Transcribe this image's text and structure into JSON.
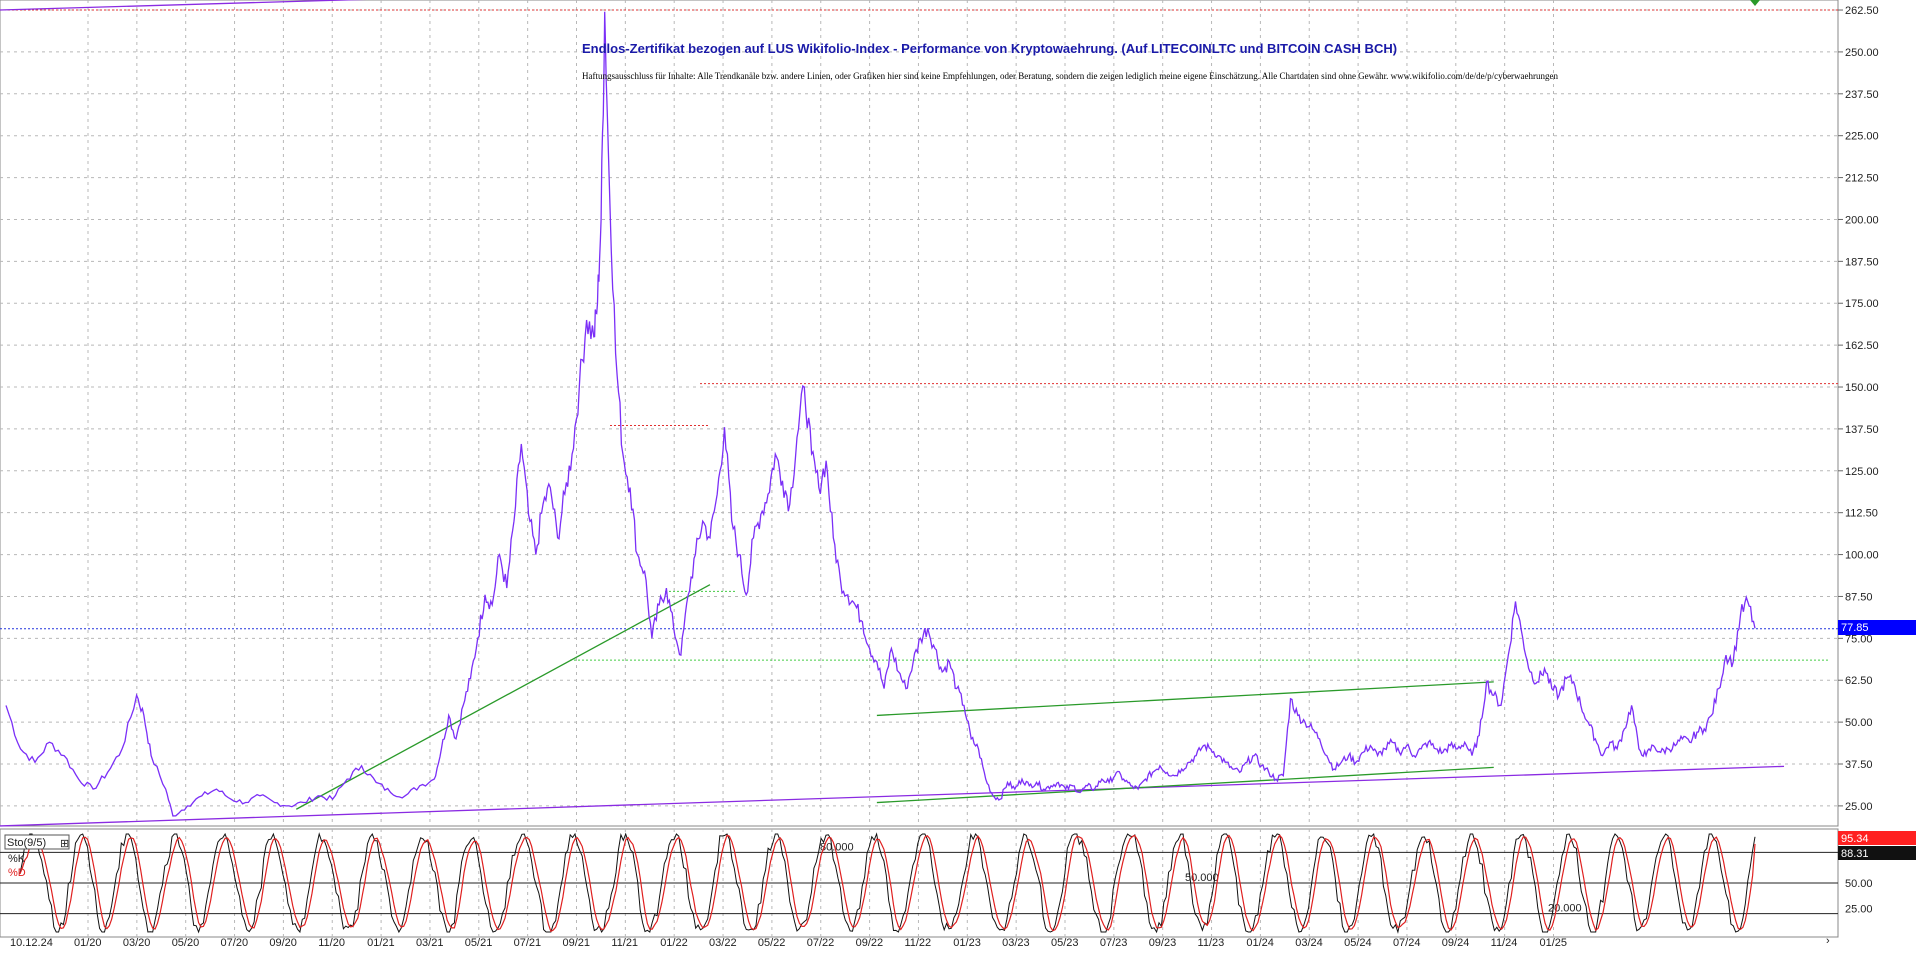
{
  "chart_data": [
    {
      "type": "line",
      "title": "Endlos-Zertifikat bezogen auf LUS Wikifolio-Index - Performance von Kryptowaehrung. (Auf LITECOINLTC und BITCOIN CASH BCH)",
      "subtitle": "Haftungsausschluss für Inhalte: Alle Trendkanäle bzw. andere Linien, oder Grafiken hier sind keine Empfehlungen, oder Beratung, sondern die zeigen lediglich meine eigene Einschätzung. Alle Chartdaten sind ohne Gewähr. www.wikifolio.com/de/de/p/cyberwaehrungen",
      "y_ticks": [
        "262.50",
        "250.00",
        "237.50",
        "225.00",
        "212.50",
        "200.00",
        "187.50",
        "175.00",
        "162.50",
        "150.00",
        "137.50",
        "125.00",
        "112.50",
        "100.00",
        "87.50",
        "75.00",
        "62.50",
        "50.00",
        "37.50",
        "25.00"
      ],
      "ylim": [
        19,
        264
      ],
      "x_ticks": [
        "10.12.24",
        "01/20",
        "03/20",
        "05/20",
        "07/20",
        "09/20",
        "11/20",
        "01/21",
        "03/21",
        "05/21",
        "07/21",
        "09/21",
        "11/21",
        "01/22",
        "03/22",
        "05/22",
        "07/22",
        "09/22",
        "11/22",
        "01/23",
        "03/23",
        "05/23",
        "07/23",
        "09/23",
        "11/23",
        "01/24",
        "03/24",
        "05/24",
        "07/24",
        "09/24",
        "11/24",
        "01/25"
      ],
      "last_value_label": "77.85",
      "grid": true,
      "series": [
        {
          "color": "#7b2ff7",
          "points": [
            [
              0,
              55
            ],
            [
              2,
              42
            ],
            [
              4,
              38
            ],
            [
              6,
              44
            ],
            [
              8,
              40
            ],
            [
              10,
              33
            ],
            [
              12,
              30
            ],
            [
              14,
              35
            ],
            [
              16,
              42
            ],
            [
              18,
              58
            ],
            [
              19,
              52
            ],
            [
              20,
              40
            ],
            [
              22,
              30
            ],
            [
              23,
              22
            ],
            [
              25,
              25
            ],
            [
              27,
              28
            ],
            [
              29,
              30
            ],
            [
              31,
              27
            ],
            [
              33,
              26
            ],
            [
              35,
              28
            ],
            [
              37,
              26
            ],
            [
              39,
              25
            ],
            [
              41,
              26
            ],
            [
              43,
              28
            ],
            [
              45,
              27
            ],
            [
              47,
              33
            ],
            [
              49,
              37
            ],
            [
              51,
              32
            ],
            [
              53,
              29
            ],
            [
              55,
              28
            ],
            [
              57,
              31
            ],
            [
              59,
              33
            ],
            [
              60,
              42
            ],
            [
              61,
              52
            ],
            [
              62,
              45
            ],
            [
              63,
              55
            ],
            [
              64,
              63
            ],
            [
              65,
              75
            ],
            [
              66,
              88
            ],
            [
              67,
              85
            ],
            [
              68,
              100
            ],
            [
              69,
              90
            ],
            [
              70,
              110
            ],
            [
              71,
              133
            ],
            [
              72,
              112
            ],
            [
              73,
              100
            ],
            [
              74,
              115
            ],
            [
              75,
              120
            ],
            [
              76,
              105
            ],
            [
              77,
              118
            ],
            [
              78,
              130
            ],
            [
              79,
              150
            ],
            [
              80,
              170
            ],
            [
              81,
              165
            ],
            [
              81.5,
              175
            ],
            [
              82,
              200
            ],
            [
              82.5,
              262
            ],
            [
              83,
              220
            ],
            [
              84,
              160
            ],
            [
              85,
              130
            ],
            [
              86,
              120
            ],
            [
              87,
              100
            ],
            [
              88,
              95
            ],
            [
              89,
              75
            ],
            [
              90,
              85
            ],
            [
              91,
              90
            ],
            [
              92,
              78
            ],
            [
              93,
              70
            ],
            [
              94,
              88
            ],
            [
              95,
              100
            ],
            [
              96,
              110
            ],
            [
              97,
              105
            ],
            [
              98,
              118
            ],
            [
              99,
              138
            ],
            [
              100,
              110
            ],
            [
              101,
              100
            ],
            [
              102,
              88
            ],
            [
              103,
              105
            ],
            [
              104,
              112
            ],
            [
              105,
              118
            ],
            [
              106,
              130
            ],
            [
              107,
              122
            ],
            [
              108,
              115
            ],
            [
              109,
              135
            ],
            [
              110,
              150
            ],
            [
              111,
              130
            ],
            [
              112,
              120
            ],
            [
              113,
              128
            ],
            [
              114,
              105
            ],
            [
              115,
              92
            ],
            [
              116,
              88
            ],
            [
              117,
              85
            ],
            [
              118,
              80
            ],
            [
              119,
              72
            ],
            [
              120,
              68
            ],
            [
              121,
              60
            ],
            [
              122,
              72
            ],
            [
              123,
              65
            ],
            [
              124,
              60
            ],
            [
              125,
              68
            ],
            [
              126,
              75
            ],
            [
              127,
              78
            ],
            [
              128,
              72
            ],
            [
              129,
              65
            ],
            [
              130,
              68
            ],
            [
              131,
              60
            ],
            [
              132,
              55
            ],
            [
              133,
              45
            ],
            [
              134,
              42
            ],
            [
              135,
              33
            ],
            [
              136,
              28
            ],
            [
              137,
              27
            ],
            [
              138,
              32
            ],
            [
              139,
              30
            ],
            [
              140,
              33
            ],
            [
              141,
              31
            ],
            [
              142,
              32
            ],
            [
              143,
              30
            ],
            [
              144,
              31
            ],
            [
              145,
              32
            ],
            [
              146,
              30
            ],
            [
              147,
              31
            ],
            [
              148,
              29
            ],
            [
              149,
              31
            ],
            [
              150,
              30
            ],
            [
              151,
              33
            ],
            [
              152,
              32
            ],
            [
              153,
              35
            ],
            [
              154,
              33
            ],
            [
              155,
              31
            ],
            [
              156,
              30
            ],
            [
              157,
              33
            ],
            [
              158,
              35
            ],
            [
              159,
              37
            ],
            [
              160,
              35
            ],
            [
              161,
              34
            ],
            [
              162,
              36
            ],
            [
              163,
              38
            ],
            [
              164,
              40
            ],
            [
              165,
              43
            ],
            [
              166,
              42
            ],
            [
              167,
              40
            ],
            [
              168,
              38
            ],
            [
              169,
              36
            ],
            [
              170,
              35
            ],
            [
              171,
              38
            ],
            [
              172,
              40
            ],
            [
              173,
              37
            ],
            [
              174,
              35
            ],
            [
              175,
              33
            ],
            [
              176,
              34
            ],
            [
              177,
              57
            ],
            [
              178,
              52
            ],
            [
              179,
              50
            ],
            [
              180,
              48
            ],
            [
              181,
              45
            ],
            [
              182,
              40
            ],
            [
              183,
              36
            ],
            [
              184,
              38
            ],
            [
              185,
              40
            ],
            [
              186,
              38
            ],
            [
              187,
              41
            ],
            [
              188,
              43
            ],
            [
              189,
              40
            ],
            [
              190,
              42
            ],
            [
              191,
              44
            ],
            [
              192,
              41
            ],
            [
              193,
              43
            ],
            [
              194,
              40
            ],
            [
              195,
              42
            ],
            [
              196,
              44
            ],
            [
              197,
              42
            ],
            [
              198,
              41
            ],
            [
              199,
              43
            ],
            [
              200,
              42
            ],
            [
              201,
              44
            ],
            [
              202,
              40
            ],
            [
              203,
              46
            ],
            [
              204,
              62
            ],
            [
              205,
              58
            ],
            [
              206,
              55
            ],
            [
              207,
              70
            ],
            [
              208,
              86
            ],
            [
              209,
              75
            ],
            [
              210,
              65
            ],
            [
              211,
              62
            ],
            [
              212,
              66
            ],
            [
              213,
              60
            ],
            [
              214,
              58
            ],
            [
              215,
              63
            ],
            [
              216,
              62
            ],
            [
              217,
              55
            ],
            [
              218,
              50
            ],
            [
              219,
              45
            ],
            [
              220,
              40
            ],
            [
              221,
              44
            ],
            [
              222,
              42
            ],
            [
              223,
              48
            ],
            [
              224,
              55
            ],
            [
              225,
              42
            ],
            [
              226,
              40
            ],
            [
              227,
              43
            ],
            [
              228,
              41
            ],
            [
              229,
              42
            ],
            [
              230,
              43
            ],
            [
              231,
              45
            ],
            [
              232,
              44
            ],
            [
              233,
              47
            ],
            [
              234,
              48
            ],
            [
              235,
              52
            ],
            [
              236,
              60
            ],
            [
              237,
              70
            ],
            [
              238,
              68
            ],
            [
              239,
              82
            ],
            [
              240,
              86
            ],
            [
              241,
              78
            ]
          ]
        }
      ],
      "reference_lines": [
        {
          "color": "#e03030",
          "y": 262.5
        },
        {
          "color": "#e03030",
          "y": 151
        },
        {
          "color": "#e03030",
          "y": 138.5
        },
        {
          "color": "#2233dd",
          "y": 77.85
        },
        {
          "color": "#44cc44",
          "y": 89
        },
        {
          "color": "#44cc44",
          "y": 68.5
        }
      ],
      "trend_lines": [
        {
          "color": "#8a2be2",
          "p1": [
            -1,
            262.5
          ],
          "p2": [
            150,
            272
          ]
        },
        {
          "color": "#8a2be2",
          "p1": [
            -1,
            19
          ],
          "p2": [
            245,
            36.8
          ]
        },
        {
          "color": "#2a9a2a",
          "p1": [
            40,
            24
          ],
          "p2": [
            97,
            91
          ]
        },
        {
          "color": "#2a9a2a",
          "p1": [
            120,
            52
          ],
          "p2": [
            205,
            62
          ]
        },
        {
          "color": "#2a9a2a",
          "p1": [
            120,
            26
          ],
          "p2": [
            205,
            36.5
          ]
        }
      ]
    },
    {
      "type": "line",
      "title": "Sto(9/5)",
      "ylim": [
        0,
        100
      ],
      "y_ticks": [
        "50.00",
        "25.00"
      ],
      "levels": [
        "80.000",
        "50.000",
        "20.000"
      ],
      "level_values": [
        80,
        50,
        20
      ],
      "value_k": "95.34",
      "value_d": "88.31",
      "series": [
        {
          "name": "%K",
          "color": "#111111",
          "generator": "stochastic_k"
        },
        {
          "name": "%D",
          "color": "#e02020",
          "generator": "stochastic_d"
        }
      ]
    }
  ],
  "legend": {
    "k": "%K",
    "d": "%D"
  },
  "colors": {
    "price": "#7b2ff7",
    "trend_purple": "#8a2be2",
    "trend_green": "#2a9a2a",
    "last_value_bg": "#0000ff",
    "stoch_k_bg": "#ff2020",
    "stoch_d_bg": "#111111"
  }
}
